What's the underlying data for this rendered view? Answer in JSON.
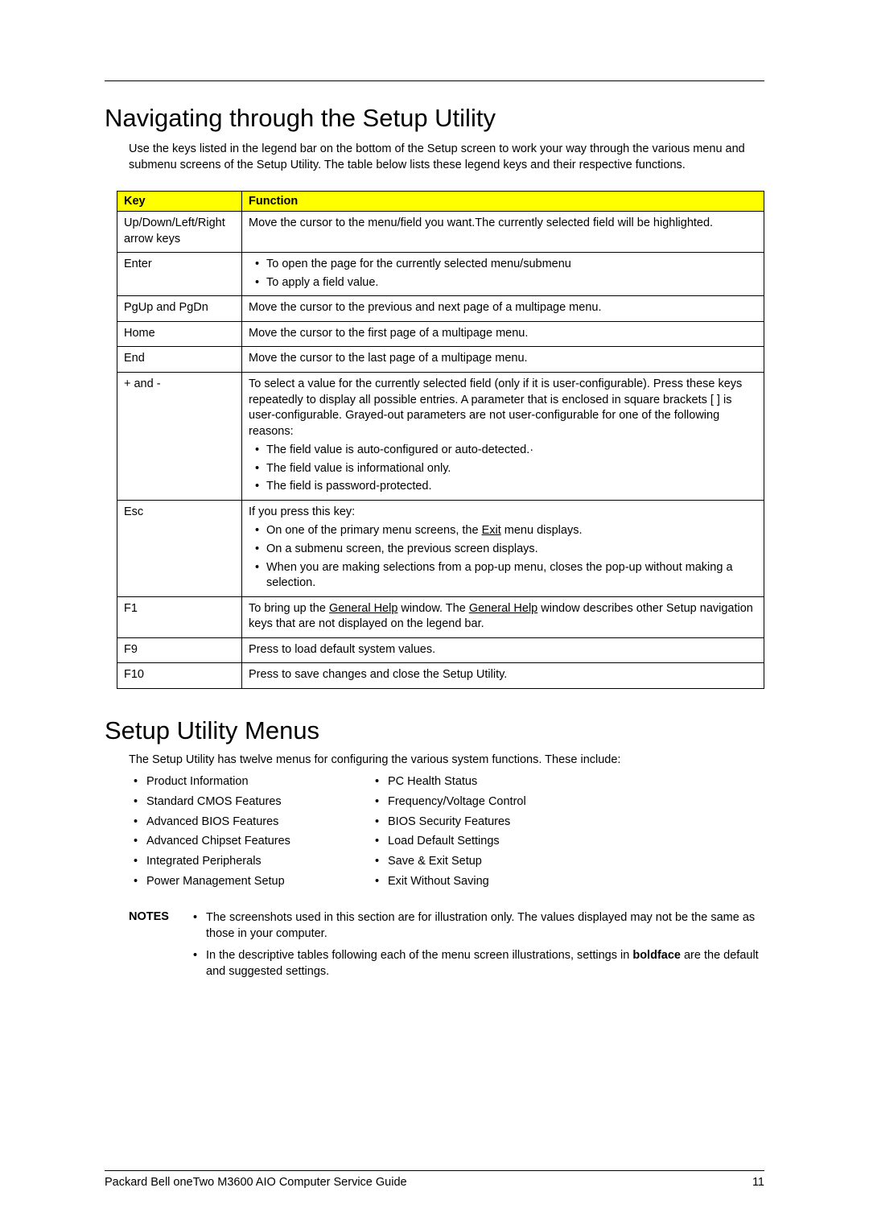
{
  "section1": {
    "heading": "Navigating through the Setup Utility",
    "intro": "Use the keys listed in the legend bar on the bottom of the Setup screen to work your way through the various menu and submenu screens of the Setup Utility. The table below lists these legend keys and their respective functions."
  },
  "table": {
    "header_key": "Key",
    "header_function": "Function",
    "rows": {
      "r0": {
        "key": "Up/Down/Left/Right arrow keys",
        "func": "Move the cursor to the menu/field you want.The currently selected field will be highlighted."
      },
      "r1": {
        "key": "Enter",
        "bullets": {
          "b0": "To open the page for the currently selected menu/submenu",
          "b1": "To apply a field value."
        }
      },
      "r2": {
        "key": "PgUp and PgDn",
        "func": "Move the cursor to the previous and next page of a multipage menu."
      },
      "r3": {
        "key": "Home",
        "func": "Move the cursor to the first page of a multipage menu."
      },
      "r4": {
        "key": "End",
        "func": "Move the cursor to the last page of a multipage menu."
      },
      "r5": {
        "key": "+ and -",
        "para": "To select a value for the currently selected field (only if it is user-configurable). Press these keys repeatedly to display all possible entries. A parameter that is enclosed in square brackets [ ] is user-configurable. Grayed-out parameters are not user-configurable for one of the following reasons:",
        "bullets": {
          "b0": "The field value is auto-configured or auto-detected.·",
          "b1": "The field value is informational only.",
          "b2": "The field is password-protected."
        }
      },
      "r6": {
        "key": "Esc",
        "para": "If you press this key:",
        "bullets": {
          "b0_pre": "On one of the primary menu screens, the ",
          "b0_u": "Exit",
          "b0_post": " menu displays.",
          "b1": "On a submenu screen, the previous screen displays.",
          "b2": "When you are making selections from a pop-up menu, closes the pop-up without making a selection."
        }
      },
      "r7": {
        "key": "F1",
        "pre1": "To bring up the ",
        "u1": "General Help",
        "mid": " window. The ",
        "u2": "General Help",
        "post": " window describes other Setup navigation keys that are not displayed on the legend bar."
      },
      "r8": {
        "key": "F9",
        "func": "Press to load default system values."
      },
      "r9": {
        "key": "F10",
        "func": "Press to save changes and close the Setup Utility."
      }
    }
  },
  "section2": {
    "heading": "Setup Utility Menus",
    "intro": "The Setup Utility has twelve menus for configuring the various system functions. These include:",
    "col1": {
      "i0": "Product Information",
      "i1": "Standard CMOS Features",
      "i2": "Advanced BIOS Features",
      "i3": "Advanced Chipset Features",
      "i4": "Integrated Peripherals",
      "i5": "Power Management Setup"
    },
    "col2": {
      "i0": "PC Health Status",
      "i1": "Frequency/Voltage Control",
      "i2": "BIOS Security Features",
      "i3": "Load Default Settings",
      "i4": "Save & Exit Setup",
      "i5": "Exit Without Saving"
    }
  },
  "notes": {
    "label": "NOTES",
    "n0": "The screenshots used in this section are for illustration only. The values displayed may not be the same as those in your computer.",
    "n1_pre": "In the descriptive tables following each of the menu screen illustrations, settings in ",
    "n1_bold": "boldface",
    "n1_post": " are the default and suggested settings."
  },
  "footer": {
    "title": "Packard Bell oneTwo M3600 AIO Computer Service Guide",
    "page": "11"
  }
}
